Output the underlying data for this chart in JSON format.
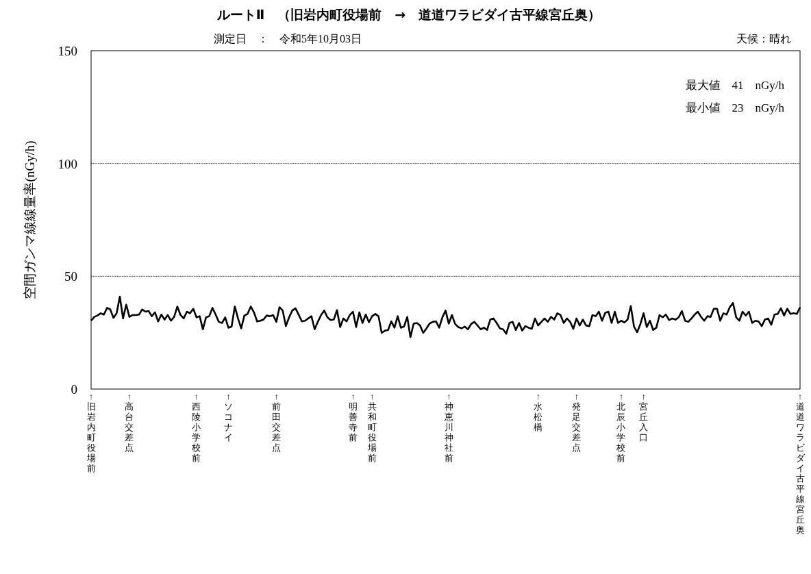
{
  "chart_data": {
    "type": "line",
    "title": "ルートⅡ　（旧岩内町役場前　→　道道ワラビダイ古平線宮丘奥）",
    "subtitle": "測定日　：　令和5年10月03日",
    "ylabel": "空間ガンマ線線量率(nGy/h)",
    "annotations": [
      "天候：晴れ",
      "最大値　41　nGy/h",
      "最小値　23　nGy/h"
    ],
    "ylim": [
      0,
      150
    ],
    "yticks": [
      0,
      50,
      100,
      150
    ],
    "grid": "y",
    "marker": "none",
    "line_style": "solid",
    "categories": [
      "↑旧岩内町役場前",
      null,
      null,
      null,
      null,
      null,
      null,
      null,
      null,
      null,
      null,
      null,
      "↑高台交差点",
      null,
      null,
      null,
      null,
      null,
      null,
      null,
      null,
      null,
      null,
      null,
      null,
      null,
      null,
      null,
      null,
      null,
      null,
      null,
      null,
      "↑西陵小学校前",
      null,
      null,
      null,
      null,
      null,
      null,
      null,
      null,
      null,
      "↑ソコナイ",
      null,
      null,
      null,
      null,
      null,
      null,
      null,
      null,
      null,
      null,
      null,
      null,
      null,
      null,
      "↑前田交差点",
      null,
      null,
      null,
      null,
      null,
      null,
      null,
      null,
      null,
      null,
      null,
      null,
      null,
      null,
      null,
      null,
      null,
      null,
      null,
      null,
      null,
      null,
      null,
      "↑明善寺前",
      null,
      null,
      null,
      null,
      null,
      "↑共和町役場前",
      null,
      null,
      null,
      null,
      null,
      null,
      null,
      null,
      null,
      null,
      null,
      null,
      null,
      null,
      null,
      null,
      null,
      null,
      null,
      null,
      null,
      null,
      null,
      "↑神恵川神社前",
      null,
      null,
      null,
      null,
      null,
      null,
      null,
      null,
      null,
      null,
      null,
      null,
      null,
      null,
      null,
      null,
      null,
      null,
      null,
      null,
      null,
      null,
      null,
      null,
      null,
      null,
      null,
      "↑水松橋",
      null,
      null,
      null,
      null,
      null,
      null,
      null,
      null,
      null,
      null,
      null,
      "↑発足交差点",
      null,
      null,
      null,
      null,
      null,
      null,
      null,
      null,
      null,
      null,
      null,
      null,
      null,
      "↑北辰小学校前",
      null,
      null,
      null,
      null,
      null,
      null,
      "↑宮丘入口",
      null,
      null,
      null,
      null,
      null,
      null,
      null,
      null,
      null,
      null,
      null,
      null,
      null,
      null,
      null,
      null,
      null,
      null,
      null,
      null,
      null,
      null,
      null,
      null,
      null,
      null,
      null,
      null,
      null,
      null,
      null,
      null,
      null,
      null,
      null,
      null,
      null,
      null,
      null,
      null,
      null,
      null,
      null,
      null,
      null,
      null,
      null,
      null,
      "↑道道ワラビダイ古平線宮丘奥"
    ],
    "series": [
      {
        "color": "#000000",
        "values": [
          30.3,
          32,
          32.6,
          33.6,
          33,
          36,
          35.3,
          31.6,
          33.6,
          41,
          31.3,
          37.4,
          32,
          32.8,
          32.8,
          33,
          35.3,
          34.3,
          34.6,
          32.3,
          34,
          30,
          33,
          30.8,
          32.8,
          30.3,
          32,
          36.6,
          32.8,
          31.3,
          34.3,
          33.6,
          35.6,
          31.8,
          32.3,
          26.5,
          31.8,
          32.3,
          36,
          33,
          29.8,
          29.3,
          31.8,
          27.2,
          27.7,
          36.6,
          31.3,
          26.9,
          32.6,
          33.3,
          36.6,
          34,
          30,
          30.3,
          30.8,
          32.6,
          32.3,
          32.8,
          29.8,
          36.3,
          34.8,
          27.9,
          31.8,
          34.8,
          35.8,
          33,
          30,
          30.3,
          31.3,
          32.3,
          26.5,
          29.8,
          32.8,
          34.8,
          31.8,
          30.6,
          30.8,
          35,
          27.5,
          31.3,
          30,
          32.8,
          34.3,
          27.5,
          34,
          29.3,
          33,
          29.6,
          32.3,
          33.3,
          32.3,
          24.9,
          25.9,
          26.2,
          30,
          27.2,
          32.3,
          27.2,
          27.7,
          32,
          23,
          29,
          29.3,
          28.2,
          24.9,
          26.9,
          29,
          29.8,
          30,
          27.2,
          31.8,
          34.8,
          29,
          32.8,
          28.8,
          27.5,
          26.9,
          27.7,
          26.5,
          28.8,
          29.8,
          28.2,
          26.5,
          27.2,
          26.2,
          30.8,
          31.3,
          29.3,
          26.9,
          26.5,
          24.5,
          29.3,
          29.8,
          26.2,
          29.3,
          25.9,
          27.9,
          27.2,
          26.7,
          31.3,
          28.2,
          29.8,
          31.3,
          29.8,
          32,
          30.8,
          33.6,
          32.8,
          29.3,
          31.3,
          29.8,
          26.7,
          31.3,
          28.2,
          30.8,
          28.2,
          27.9,
          32.8,
          32.3,
          34.3,
          30.3,
          33.8,
          34.3,
          29.3,
          34.3,
          29.3,
          30.3,
          29.5,
          30.8,
          36.8,
          27.7,
          25.2,
          28.8,
          33.6,
          27.5,
          30.3,
          26.2,
          27.2,
          32.8,
          31.8,
          33,
          30.6,
          31.3,
          30.8,
          31.8,
          34.6,
          30.3,
          29.8,
          31.3,
          33,
          34.3,
          32,
          30.3,
          32.3,
          32,
          35.6,
          35.6,
          30.3,
          33.6,
          33,
          36.3,
          38.2,
          31.8,
          30.3,
          34.3,
          32.6,
          34.3,
          29.3,
          30.3,
          30,
          27.9,
          30.8,
          31.3,
          28.5,
          33,
          33.3,
          35.8,
          32.6,
          35.6,
          33.3,
          33.6,
          33.3,
          36.3
        ]
      }
    ]
  }
}
